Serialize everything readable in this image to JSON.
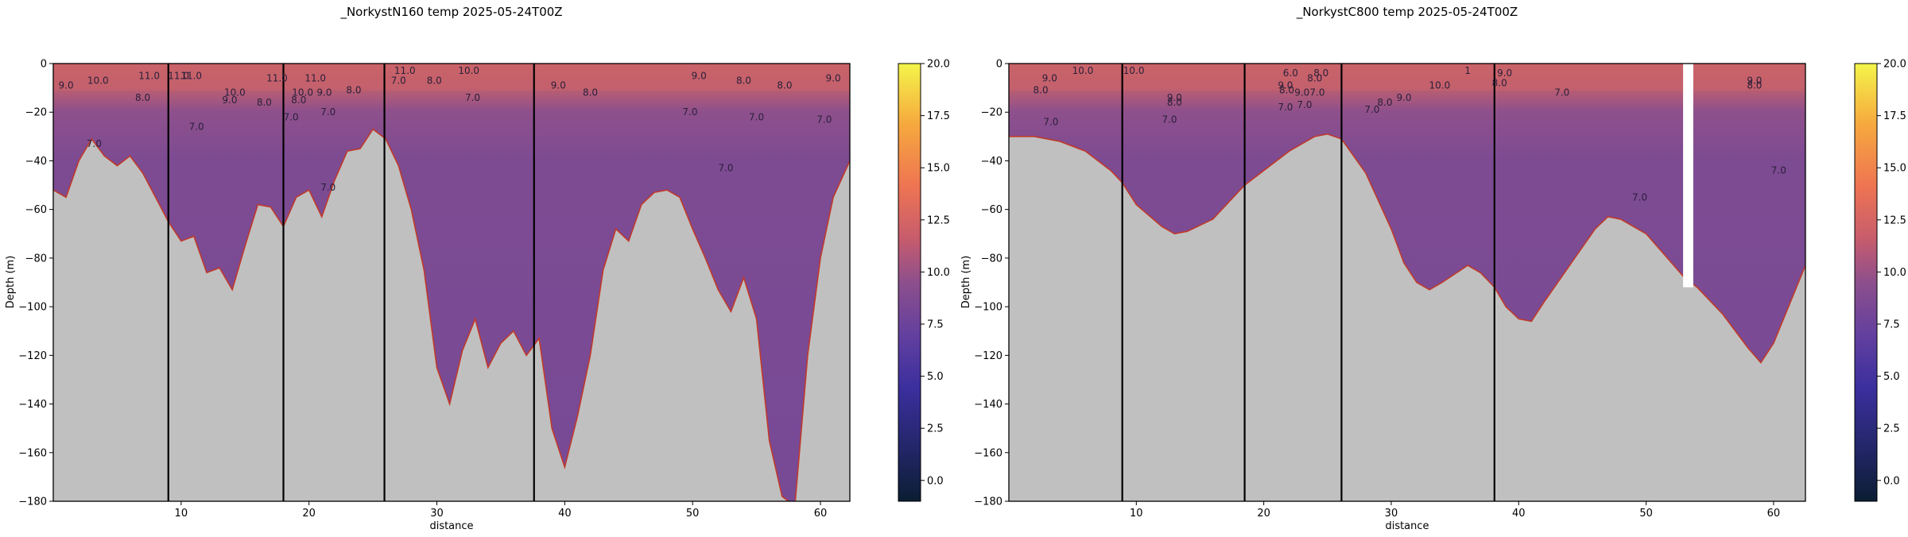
{
  "chart_data": [
    {
      "type": "area",
      "title": "_NorkystN160 temp 2025-05-24T00Z",
      "xlabel": "distance",
      "ylabel": "Depth (m)",
      "xlim": [
        0,
        62.3
      ],
      "ylim": [
        -180,
        0
      ],
      "x_ticks": [
        10,
        20,
        30,
        40,
        50,
        60
      ],
      "y_ticks": [
        0,
        -20,
        -40,
        -60,
        -80,
        -100,
        -120,
        -140,
        -160,
        -180
      ],
      "section_boundaries": [
        9.0,
        18.0,
        25.9,
        37.6
      ],
      "colorbar": {
        "min": -1,
        "max": 20,
        "ticks": [
          0.0,
          2.5,
          5.0,
          7.5,
          10.0,
          12.5,
          15.0,
          17.5,
          20.0
        ]
      },
      "bathymetry": {
        "x": [
          0,
          1,
          2,
          3,
          4,
          5,
          6,
          7,
          8,
          9,
          10,
          11,
          12,
          13,
          14,
          15,
          16,
          17,
          18,
          19,
          20,
          21,
          22,
          23,
          24,
          25,
          26,
          27,
          28,
          29,
          30,
          31,
          32,
          33,
          34,
          35,
          36,
          37,
          38,
          39,
          40,
          41,
          42,
          43,
          44,
          45,
          46,
          47,
          48,
          49,
          50,
          51,
          52,
          53,
          54,
          55,
          56,
          57,
          58,
          59,
          60,
          61,
          62.3
        ],
        "depth": [
          -52,
          -55,
          -40,
          -31,
          -38,
          -42,
          -38,
          -45,
          -55,
          -65,
          -73,
          -71,
          -86,
          -84,
          -93,
          -75,
          -58,
          -59,
          -67,
          -55,
          -52,
          -63,
          -48,
          -36,
          -35,
          -27,
          -31,
          -42,
          -60,
          -85,
          -125,
          -140,
          -118,
          -105,
          -125,
          -115,
          -110,
          -120,
          -113,
          -150,
          -166,
          -145,
          -120,
          -85,
          -68,
          -73,
          -58,
          -53,
          -52,
          -55,
          -68,
          -80,
          -93,
          -102,
          -88,
          -105,
          -155,
          -178,
          -182,
          -120,
          -80,
          -55,
          -40
        ]
      },
      "isotherm_labels": [
        {
          "x": 7.5,
          "y": -5,
          "t": "11.0"
        },
        {
          "x": 9.8,
          "y": -5,
          "t": "11.0"
        },
        {
          "x": 1.0,
          "y": -9,
          "t": "9.0"
        },
        {
          "x": 3.5,
          "y": -7,
          "t": "10.0"
        },
        {
          "x": 7.0,
          "y": -14,
          "t": "8.0"
        },
        {
          "x": 10.8,
          "y": -5,
          "t": "11.0"
        },
        {
          "x": 14.2,
          "y": -12,
          "t": "10.0"
        },
        {
          "x": 13.8,
          "y": -15,
          "t": "9.0"
        },
        {
          "x": 16.5,
          "y": -16,
          "t": "8.0"
        },
        {
          "x": 17.5,
          "y": -6,
          "t": "11.0"
        },
        {
          "x": 19.5,
          "y": -12,
          "t": "10.0"
        },
        {
          "x": 19.2,
          "y": -15,
          "t": "8.0"
        },
        {
          "x": 20.5,
          "y": -6,
          "t": "11.0"
        },
        {
          "x": 21.2,
          "y": -12,
          "t": "9.0"
        },
        {
          "x": 18.6,
          "y": -22,
          "t": "7.0"
        },
        {
          "x": 21.5,
          "y": -20,
          "t": "7.0"
        },
        {
          "x": 23.5,
          "y": -11,
          "t": "8.0"
        },
        {
          "x": 27.5,
          "y": -3,
          "t": "11.0"
        },
        {
          "x": 27.0,
          "y": -7,
          "t": "7.0"
        },
        {
          "x": 29.8,
          "y": -7,
          "t": "8.0"
        },
        {
          "x": 32.8,
          "y": -14,
          "t": "7.0"
        },
        {
          "x": 32.5,
          "y": -3,
          "t": "10.0"
        },
        {
          "x": 11.2,
          "y": -26,
          "t": "7.0"
        },
        {
          "x": 3.2,
          "y": -33,
          "t": "7.0"
        },
        {
          "x": 21.5,
          "y": -51,
          "t": "7.0"
        },
        {
          "x": 39.5,
          "y": -9,
          "t": "9.0"
        },
        {
          "x": 42.0,
          "y": -12,
          "t": "8.0"
        },
        {
          "x": 49.8,
          "y": -20,
          "t": "7.0"
        },
        {
          "x": 50.5,
          "y": -5,
          "t": "9.0"
        },
        {
          "x": 54.0,
          "y": -7,
          "t": "8.0"
        },
        {
          "x": 57.2,
          "y": -9,
          "t": "8.0"
        },
        {
          "x": 61.0,
          "y": -6,
          "t": "9.0"
        },
        {
          "x": 55.0,
          "y": -22,
          "t": "7.0"
        },
        {
          "x": 60.3,
          "y": -23,
          "t": "7.0"
        },
        {
          "x": 52.6,
          "y": -43,
          "t": "7.0"
        }
      ]
    },
    {
      "type": "area",
      "title": "_NorkystC800 temp 2025-05-24T00Z",
      "xlabel": "distance",
      "ylabel": "Depth (m)",
      "xlim": [
        0,
        62.5
      ],
      "ylim": [
        -180,
        0
      ],
      "x_ticks": [
        10,
        20,
        30,
        40,
        50,
        60
      ],
      "y_ticks": [
        0,
        -20,
        -40,
        -60,
        -80,
        -100,
        -120,
        -140,
        -160,
        -180
      ],
      "section_boundaries": [
        8.9,
        18.5,
        26.1,
        38.1
      ],
      "colorbar": {
        "min": -1,
        "max": 20,
        "ticks": [
          0.0,
          2.5,
          5.0,
          7.5,
          10.0,
          12.5,
          15.0,
          17.5,
          20.0
        ]
      },
      "bathymetry": {
        "x": [
          0,
          2,
          4,
          6,
          8,
          8.9,
          10,
          12,
          13,
          14,
          16,
          18.5,
          20,
          22,
          24,
          25,
          26.1,
          28,
          30,
          31,
          32,
          33,
          34,
          36,
          37,
          38.1,
          39,
          40,
          41,
          42,
          44,
          46,
          47,
          48,
          50,
          52,
          53,
          54,
          56,
          58,
          59,
          60,
          62.5
        ],
        "depth": [
          -30,
          -30,
          -32,
          -36,
          -44,
          -49,
          -58,
          -67,
          -70,
          -69,
          -64,
          -50,
          -44,
          -36,
          -30,
          -29,
          -31,
          -45,
          -68,
          -82,
          -90,
          -93,
          -90,
          -83,
          -86,
          -92,
          -100,
          -105,
          -106,
          -98,
          -83,
          -68,
          -63,
          -64,
          -70,
          -82,
          -88,
          -92,
          -103,
          -117,
          -123,
          -115,
          -83
        ]
      },
      "gap_strip": [
        52.9,
        53.7
      ],
      "isotherm_labels": [
        {
          "x": 3.2,
          "y": -6,
          "t": "9.0"
        },
        {
          "x": 2.5,
          "y": -11,
          "t": "8.0"
        },
        {
          "x": 5.8,
          "y": -3,
          "t": "10.0"
        },
        {
          "x": 9.8,
          "y": -3,
          "t": "10.0"
        },
        {
          "x": 3.3,
          "y": -24,
          "t": "7.0"
        },
        {
          "x": 13.0,
          "y": -14,
          "t": "9.0"
        },
        {
          "x": 13.0,
          "y": -16,
          "t": "8.0"
        },
        {
          "x": 12.6,
          "y": -23,
          "t": "7.0"
        },
        {
          "x": 21.7,
          "y": -18,
          "t": "7.0"
        },
        {
          "x": 22.1,
          "y": -4,
          "t": "6.0"
        },
        {
          "x": 21.7,
          "y": -9,
          "t": "9.0"
        },
        {
          "x": 21.8,
          "y": -11,
          "t": "8.0"
        },
        {
          "x": 23.0,
          "y": -12,
          "t": "9.0"
        },
        {
          "x": 23.2,
          "y": -17,
          "t": "7.0"
        },
        {
          "x": 24.0,
          "y": -6,
          "t": "8.0"
        },
        {
          "x": 24.2,
          "y": -12,
          "t": "7.0"
        },
        {
          "x": 24.5,
          "y": -4,
          "t": "8.0"
        },
        {
          "x": 31.0,
          "y": -14,
          "t": "9.0"
        },
        {
          "x": 29.5,
          "y": -16,
          "t": "8.0"
        },
        {
          "x": 28.5,
          "y": -19,
          "t": "7.0"
        },
        {
          "x": 33.8,
          "y": -9,
          "t": "10.0"
        },
        {
          "x": 36.0,
          "y": -3,
          "t": "1"
        },
        {
          "x": 38.9,
          "y": -4,
          "t": "9.0"
        },
        {
          "x": 38.5,
          "y": -8,
          "t": "8.0"
        },
        {
          "x": 43.4,
          "y": -12,
          "t": "7.0"
        },
        {
          "x": 58.5,
          "y": -7,
          "t": "9.0"
        },
        {
          "x": 58.5,
          "y": -9,
          "t": "8.0"
        },
        {
          "x": 60.4,
          "y": -44,
          "t": "7.0"
        },
        {
          "x": 49.5,
          "y": -55,
          "t": "7.0"
        }
      ]
    }
  ]
}
